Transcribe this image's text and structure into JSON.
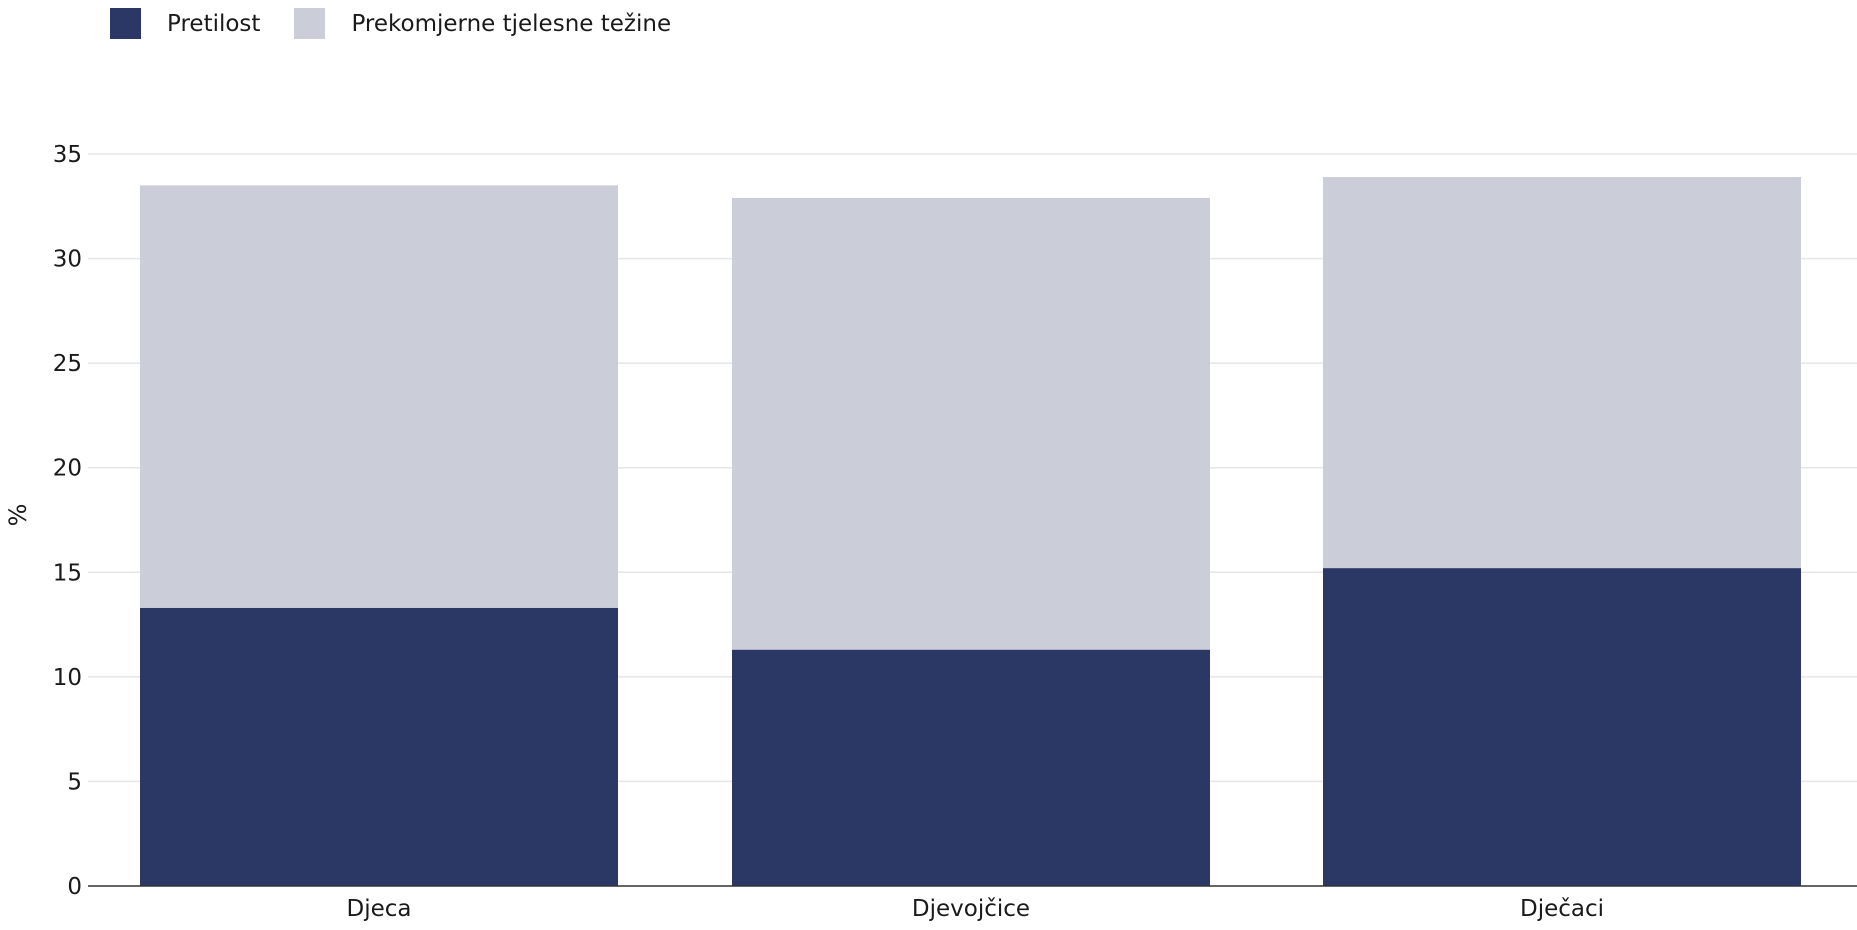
{
  "legend": [
    {
      "label": "Pretilost",
      "color": "#2b3764"
    },
    {
      "label": "Prekomjerne tjelesne težine",
      "color": "#cbcdd9"
    }
  ],
  "chart_data": {
    "type": "bar",
    "stacked": true,
    "categories": [
      "Djeca",
      "Djevojčice",
      "Dječaci"
    ],
    "series": [
      {
        "name": "Pretilost",
        "color": "#2b3764",
        "values": [
          13.3,
          11.3,
          15.2
        ]
      },
      {
        "name": "Prekomjerne tjelesne težine",
        "color": "#cbcdd9",
        "values": [
          20.2,
          21.6,
          18.7
        ]
      }
    ],
    "ylabel": "%",
    "xlabel": "",
    "ylim": [
      0,
      35
    ],
    "yticks": [
      0,
      5,
      10,
      15,
      20,
      25,
      30,
      35
    ],
    "grid": true,
    "legend_position": "top-left"
  }
}
